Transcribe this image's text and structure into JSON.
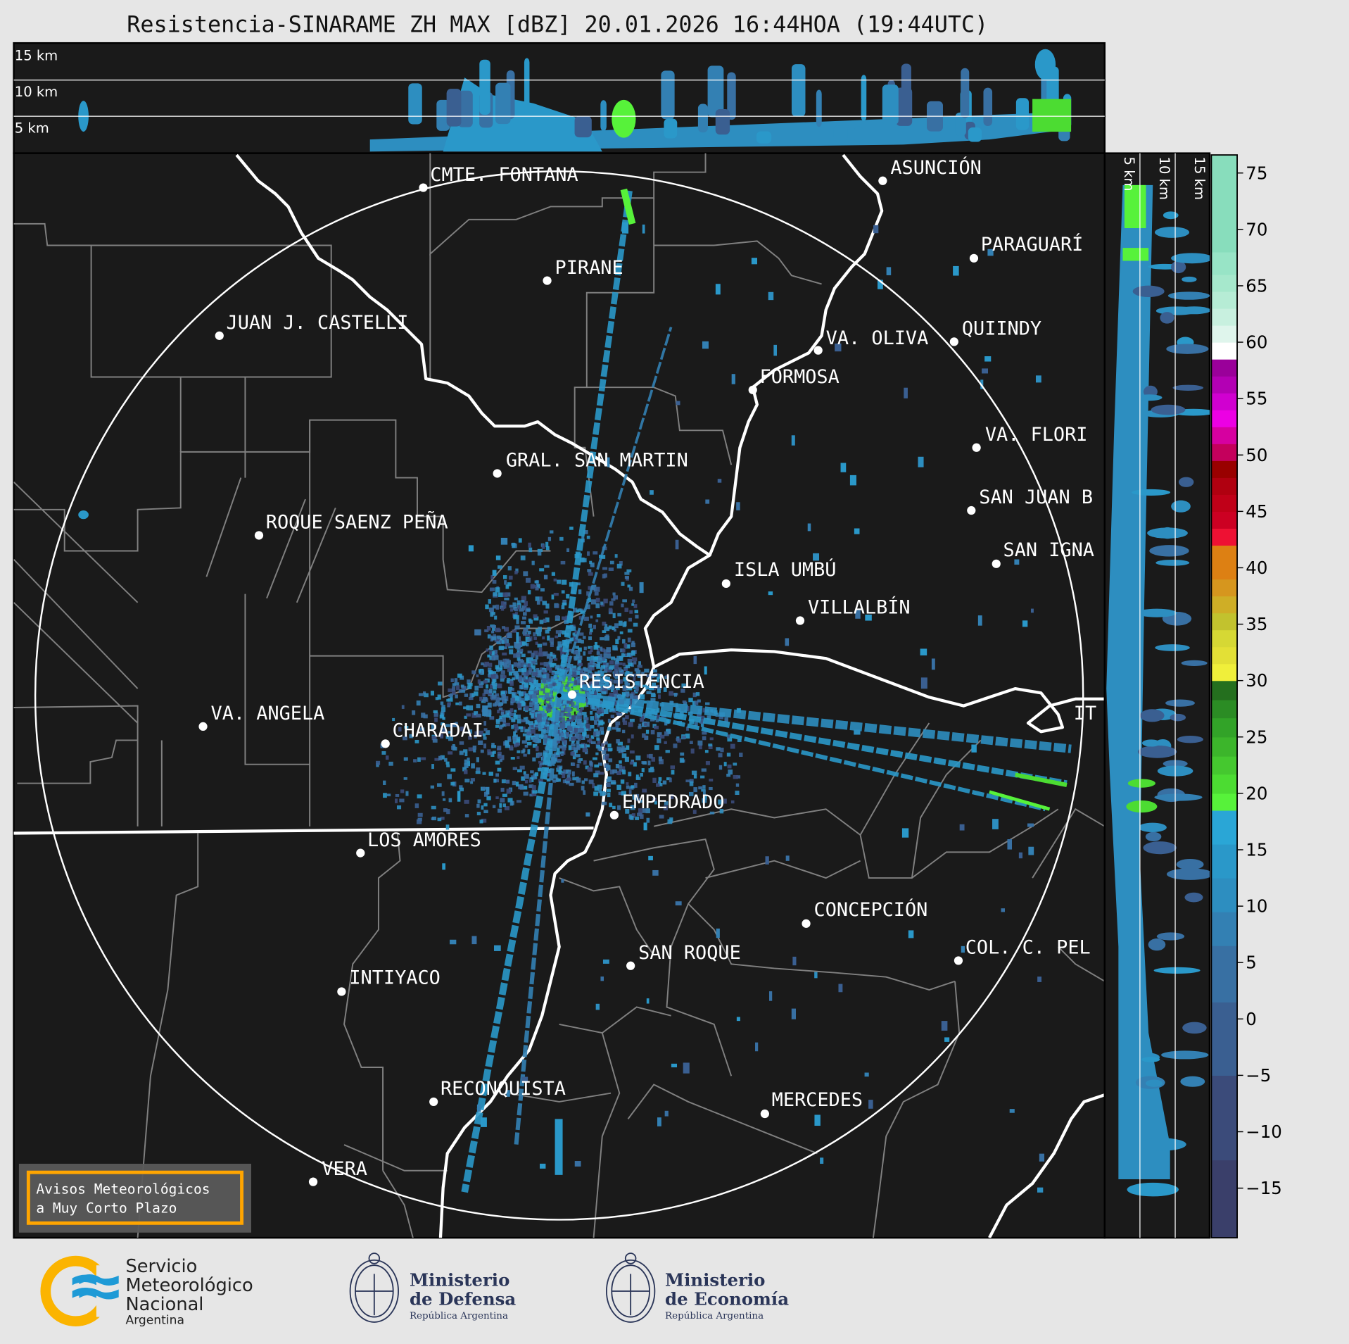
{
  "title": "Resistencia-SINARAME ZH MAX [dBZ] 20.01.2026 16:44HOA (19:44UTC)",
  "top_panel": {
    "height_labels": [
      "15 km",
      "10 km",
      "5 km"
    ]
  },
  "side_panel": {
    "height_labels": [
      "5 km",
      "10 km",
      "15 km"
    ]
  },
  "cities": [
    "CMTE. FONTANA",
    "PIRANE",
    "JUAN J. CASTELLI",
    "ASUNCIÓN",
    "PARAGUARÍ",
    "QUIINDY",
    "VA. OLIVA",
    "FORMOSA",
    "VA. FLORI",
    "GRAL. SAN MARTIN",
    "SAN JUAN B",
    "ROQUE SAENZ PEÑA",
    "SAN IGNA",
    "ISLA UMBÚ",
    "VILLALBÍN",
    "RESISTENCIA",
    "VA. ANGELA",
    "CHARADAI",
    "IT",
    "EMPEDRADO",
    "LOS AMORES",
    "CONCEPCIÓN",
    "SAN ROQUE",
    "COL. C. PEL",
    "INTIYACO",
    "RECONQUISTA",
    "MERCEDES",
    "VERA"
  ],
  "colorbar": {
    "unit": "dBZ",
    "ticks": [
      "75",
      "70",
      "65",
      "60",
      "55",
      "50",
      "45",
      "40",
      "35",
      "30",
      "25",
      "20",
      "15",
      "10",
      "5",
      "0",
      "−5",
      "−10",
      "−15"
    ],
    "tick_values": [
      75,
      70,
      65,
      60,
      55,
      50,
      45,
      40,
      35,
      30,
      25,
      20,
      15,
      10,
      5,
      0,
      -5,
      -10,
      -15
    ],
    "segments": [
      [
        -20,
        -12.5,
        "#3a3f6a"
      ],
      [
        -12.5,
        -5,
        "#3b4b7a"
      ],
      [
        -5,
        1.5,
        "#3a5f91"
      ],
      [
        1.5,
        6.5,
        "#3870a3"
      ],
      [
        6.5,
        9.5,
        "#3380b3"
      ],
      [
        9.5,
        12.5,
        "#2d8ec0"
      ],
      [
        12.5,
        15.5,
        "#2a98c9"
      ],
      [
        15.5,
        18.5,
        "#2aa6d6"
      ],
      [
        18.5,
        20,
        "#57f23a"
      ],
      [
        20,
        21.7,
        "#4cdc32"
      ],
      [
        21.7,
        23.3,
        "#45c82f"
      ],
      [
        23.3,
        25,
        "#3cb52b"
      ],
      [
        25,
        26.7,
        "#32a328"
      ],
      [
        26.7,
        28.3,
        "#2b8c24"
      ],
      [
        28.3,
        30,
        "#246f1e"
      ],
      [
        30,
        31.5,
        "#f0ef3a"
      ],
      [
        31.5,
        33,
        "#e3e036"
      ],
      [
        33,
        34.5,
        "#d6d834"
      ],
      [
        34.5,
        36,
        "#c2c22e"
      ],
      [
        36,
        37.5,
        "#cfae26"
      ],
      [
        37.5,
        39,
        "#d6961e"
      ],
      [
        39,
        42,
        "#dd8013"
      ],
      [
        42,
        43.5,
        "#ee1133"
      ],
      [
        43.5,
        45,
        "#cc0022"
      ],
      [
        45,
        46.5,
        "#c00018"
      ],
      [
        46.5,
        48,
        "#b00010"
      ],
      [
        48,
        49.5,
        "#990000"
      ],
      [
        49.5,
        51,
        "#c4005c"
      ],
      [
        51,
        52.5,
        "#d600a0"
      ],
      [
        52.5,
        54,
        "#ec00e4"
      ],
      [
        54,
        55.5,
        "#d000d0"
      ],
      [
        55.5,
        57,
        "#b300b4"
      ],
      [
        57,
        58.5,
        "#9a009a"
      ],
      [
        58.5,
        60,
        "#ffffff"
      ],
      [
        60,
        61.5,
        "#dff5ec"
      ],
      [
        61.5,
        63,
        "#c8f0df"
      ],
      [
        63,
        64.5,
        "#b6ecd5"
      ],
      [
        64.5,
        66,
        "#a6e8cc"
      ],
      [
        66,
        68,
        "#98e4c6"
      ],
      [
        68,
        76.6,
        "#88ddbc"
      ]
    ]
  },
  "warning_box": {
    "line1": "Avisos Meteorológicos",
    "line2": "a Muy Corto Plazo",
    "border_color": "#ffa500"
  },
  "logos": {
    "smn": {
      "line1": "Servicio",
      "line2": "Meteorológico",
      "line3": "Nacional",
      "line4": "Argentina"
    },
    "defensa": {
      "line1": "Ministerio",
      "line2": "de Defensa",
      "line3": "República Argentina"
    },
    "economia": {
      "line1": "Ministerio",
      "line2": "de Economía",
      "line3": "República Argentina"
    }
  },
  "colors": {
    "background": "#1a1a1a",
    "borders": "#808080",
    "rivers": "#ffffff",
    "range_ring": "#ffffff",
    "accent_orange": "#ffa500",
    "smn_yellow": "#fbb400",
    "smn_blue": "#1e9ad6",
    "ministry_navy": "#2a3558"
  }
}
